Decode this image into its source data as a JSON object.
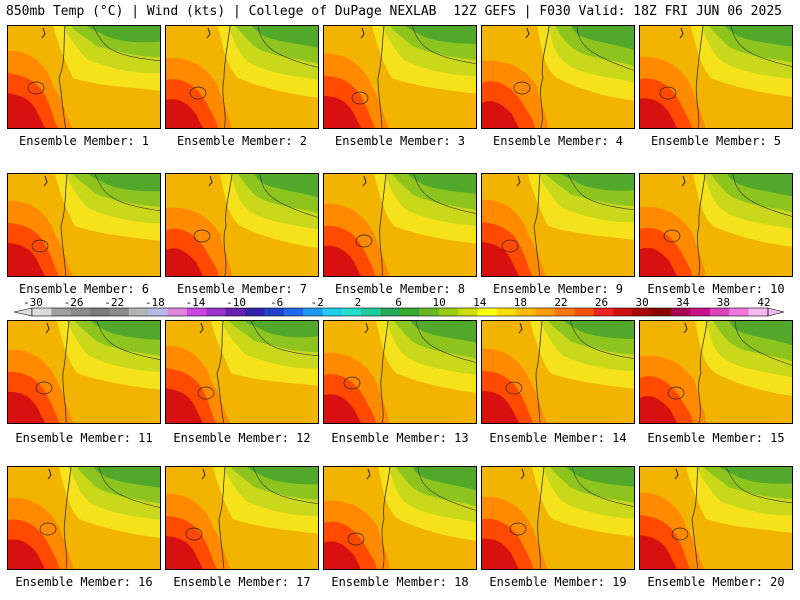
{
  "header": {
    "left_title": "850mb Temp (°C) | Wind (kts) | College of DuPage NEXLAB",
    "right_title": "12Z GEFS | F030 Valid: 18Z FRI JUN 06 2025"
  },
  "members": [
    "Ensemble Member: 1",
    "Ensemble Member: 2",
    "Ensemble Member: 3",
    "Ensemble Member: 4",
    "Ensemble Member: 5",
    "Ensemble Member: 6",
    "Ensemble Member: 7",
    "Ensemble Member: 8",
    "Ensemble Member: 9",
    "Ensemble Member: 10",
    "Ensemble Member: 11",
    "Ensemble Member: 12",
    "Ensemble Member: 13",
    "Ensemble Member: 14",
    "Ensemble Member: 15",
    "Ensemble Member: 16",
    "Ensemble Member: 17",
    "Ensemble Member: 18",
    "Ensemble Member: 19",
    "Ensemble Member: 20"
  ],
  "colorbar": {
    "labels": [
      "-30",
      "-26",
      "-22",
      "-18",
      "-14",
      "-10",
      "-6",
      "-2",
      "2",
      "6",
      "10",
      "14",
      "18",
      "22",
      "26",
      "30",
      "34",
      "38",
      "42"
    ],
    "colors": [
      "#dcdcdc",
      "#a0a0a0",
      "#8c8c8c",
      "#7a7a7a",
      "#8c8c8c",
      "#b4b4b4",
      "#b8b8e8",
      "#dd88dd",
      "#cc44dd",
      "#9933cc",
      "#6622aa",
      "#3322aa",
      "#2244cc",
      "#2266ee",
      "#2299ee",
      "#22ccee",
      "#22ddcc",
      "#22cc99",
      "#22aa55",
      "#33aa33",
      "#66bb22",
      "#99cc11",
      "#ccdd00",
      "#ffff00",
      "#ffdd00",
      "#ffbb00",
      "#ff9900",
      "#ff7700",
      "#ff5500",
      "#ee2222",
      "#cc1111",
      "#aa0000",
      "#880000",
      "#aa0055",
      "#cc1188",
      "#dd44bb",
      "#ee77dd",
      "#f5b8ee"
    ]
  }
}
